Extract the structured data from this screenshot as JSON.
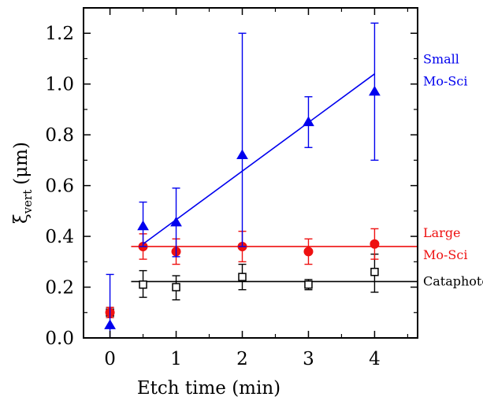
{
  "colors": {
    "small": "#0000ee",
    "large": "#ee1111",
    "cataphote": "#000000",
    "axis": "#000000"
  },
  "chart_data": {
    "type": "scatter",
    "title": "",
    "xlabel": "Etch time (min)",
    "ylabel_main": "ξ",
    "ylabel_sub": "vert",
    "ylabel_unit": "(μm)",
    "xlim": [
      -0.4,
      4.65
    ],
    "ylim": [
      0.0,
      1.3
    ],
    "xticks": [
      0,
      1,
      2,
      3,
      4
    ],
    "xtick_labels": [
      "0",
      "1",
      "2",
      "3",
      "4"
    ],
    "yticks": [
      0.0,
      0.2,
      0.4,
      0.6,
      0.8,
      1.0,
      1.2
    ],
    "ytick_labels": [
      "0.0",
      "0.2",
      "0.4",
      "0.6",
      "0.8",
      "1.0",
      "1.2"
    ],
    "grid": false,
    "legend": "right",
    "series": [
      {
        "key": "small",
        "marker": "filled-triangle",
        "labels": [
          "Small",
          "Mo-Sci"
        ],
        "x": [
          0,
          0.5,
          1,
          2,
          3,
          4
        ],
        "y": [
          0.05,
          0.44,
          0.455,
          0.72,
          0.85,
          0.97
        ],
        "err_low": [
          0.0,
          0.36,
          0.32,
          0.36,
          0.75,
          0.7
        ],
        "err_high": [
          0.25,
          0.535,
          0.59,
          1.2,
          0.95,
          1.24
        ],
        "fit": {
          "x": [
            0.5,
            4
          ],
          "y": [
            0.37,
            1.04
          ]
        }
      },
      {
        "key": "large",
        "marker": "filled-circle",
        "labels": [
          "Large",
          "Mo-Sci"
        ],
        "x": [
          0,
          0.5,
          1,
          2,
          3,
          4
        ],
        "y": [
          0.1,
          0.36,
          0.34,
          0.36,
          0.34,
          0.37
        ],
        "err_low": [
          0.08,
          0.31,
          0.29,
          0.3,
          0.29,
          0.31
        ],
        "err_high": [
          0.12,
          0.41,
          0.39,
          0.42,
          0.39,
          0.43
        ],
        "fit": {
          "x": [
            0.32,
            4.65
          ],
          "y": [
            0.36,
            0.36
          ]
        }
      },
      {
        "key": "cataphote",
        "marker": "open-square",
        "labels": [
          "Cataphote"
        ],
        "x": [
          0,
          0.5,
          1,
          2,
          3,
          4
        ],
        "y": [
          0.1,
          0.21,
          0.2,
          0.24,
          0.21,
          0.26
        ],
        "err_low": [
          0.08,
          0.16,
          0.15,
          0.19,
          0.19,
          0.18
        ],
        "err_high": [
          0.12,
          0.265,
          0.245,
          0.29,
          0.23,
          0.33
        ],
        "fit": {
          "x": [
            0.32,
            4.65
          ],
          "y": [
            0.222,
            0.222
          ]
        }
      }
    ]
  }
}
